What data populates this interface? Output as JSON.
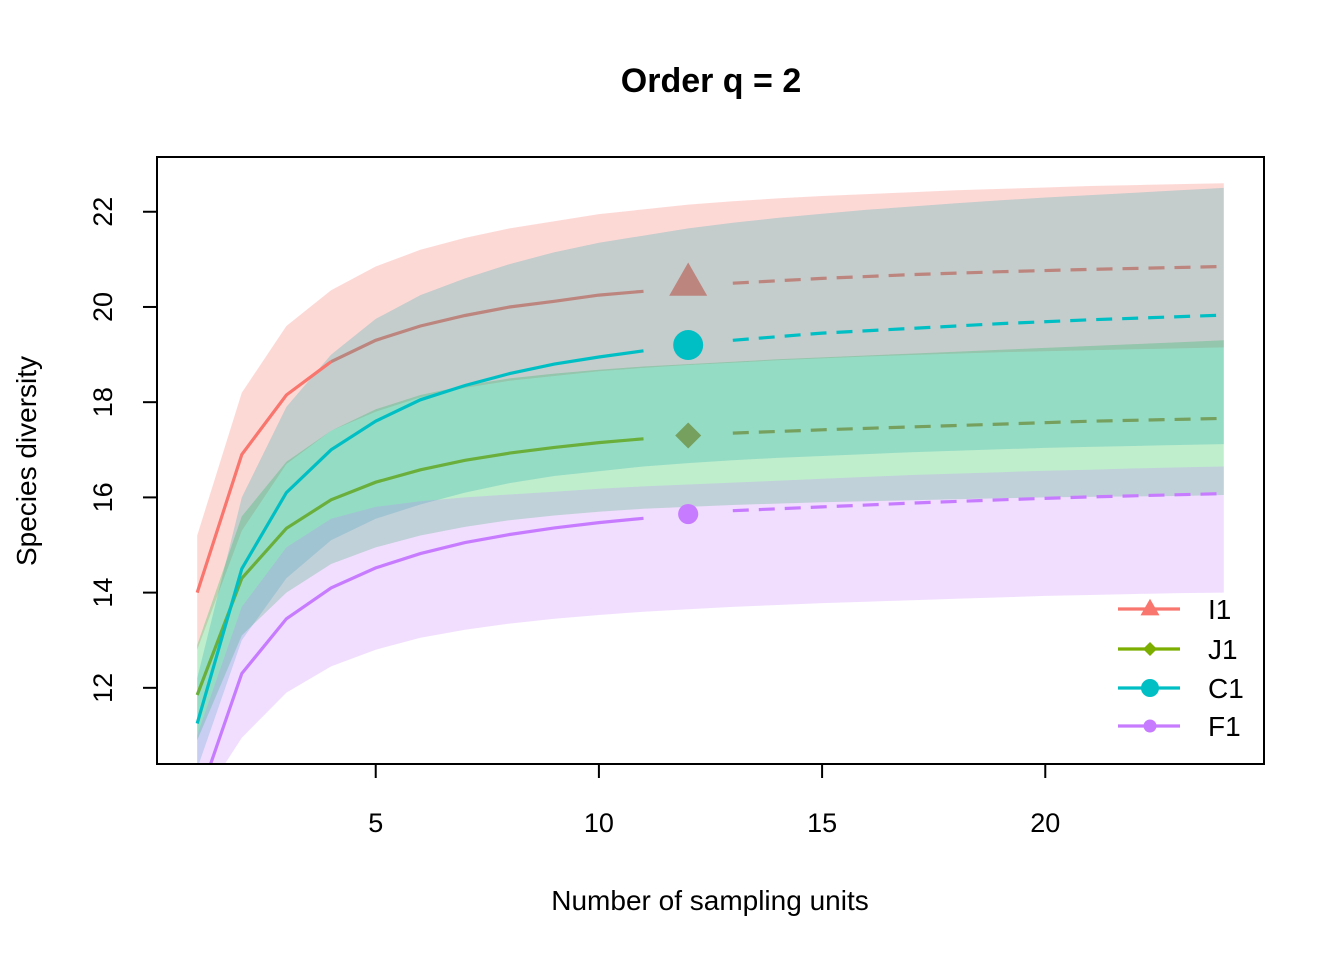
{
  "chart_data": {
    "type": "line",
    "title": "Order q = 2",
    "xlabel": "Number of sampling units",
    "ylabel": "Species diversity",
    "xlim": [
      0.1,
      24.9
    ],
    "ylim": [
      10.4,
      23.15
    ],
    "xticks": [
      5,
      10,
      15,
      20
    ],
    "yticks": [
      12,
      14,
      16,
      18,
      20,
      22
    ],
    "legend_position": "bottom-right",
    "reference_size": 12,
    "series": [
      {
        "name": "I1",
        "color": "#F8766D",
        "band_color": "rgba(248,118,109,0.28)",
        "marker": "triangle",
        "reference_value": 20.5,
        "interpolated": {
          "x": [
            1,
            2,
            3,
            4,
            5,
            6,
            7,
            8,
            9,
            10,
            11
          ],
          "y": [
            14.0,
            16.9,
            18.15,
            18.85,
            19.3,
            19.6,
            19.82,
            20.0,
            20.12,
            20.25,
            20.33
          ]
        },
        "extrapolated": {
          "x": [
            13,
            15,
            17,
            19,
            21,
            24
          ],
          "y": [
            20.5,
            20.6,
            20.68,
            20.74,
            20.79,
            20.85
          ]
        },
        "band": {
          "x": [
            1,
            2,
            3,
            4,
            5,
            6,
            7,
            8,
            9,
            10,
            11,
            12,
            13,
            14,
            15,
            16,
            17,
            18,
            19,
            20,
            21,
            22,
            23,
            24
          ],
          "lower": [
            12.8,
            15.3,
            16.7,
            17.4,
            17.8,
            18.1,
            18.3,
            18.45,
            18.55,
            18.65,
            18.72,
            18.78,
            18.83,
            18.88,
            18.92,
            18.96,
            18.99,
            19.02,
            19.05,
            19.07,
            19.09,
            19.11,
            19.13,
            19.15
          ],
          "upper": [
            15.2,
            18.2,
            19.6,
            20.35,
            20.85,
            21.2,
            21.45,
            21.65,
            21.8,
            21.95,
            22.05,
            22.15,
            22.22,
            22.28,
            22.33,
            22.37,
            22.41,
            22.45,
            22.48,
            22.51,
            22.54,
            22.56,
            22.58,
            22.6
          ]
        }
      },
      {
        "name": "J1",
        "color": "#7CAE00",
        "band_color": "rgba(0,186,56,0.25)",
        "marker": "diamond",
        "reference_value": 17.3,
        "interpolated": {
          "x": [
            1,
            2,
            3,
            4,
            5,
            6,
            7,
            8,
            9,
            10,
            11
          ],
          "y": [
            11.85,
            14.3,
            15.35,
            15.95,
            16.32,
            16.58,
            16.78,
            16.93,
            17.05,
            17.15,
            17.23
          ]
        },
        "extrapolated": {
          "x": [
            13,
            15,
            17,
            19,
            21,
            24
          ],
          "y": [
            17.35,
            17.42,
            17.48,
            17.54,
            17.6,
            17.66
          ]
        },
        "band": {
          "x": [
            1,
            2,
            3,
            4,
            5,
            6,
            7,
            8,
            9,
            10,
            11,
            12,
            13,
            14,
            15,
            16,
            17,
            18,
            19,
            20,
            21,
            22,
            23,
            24
          ],
          "lower": [
            10.9,
            13.1,
            14.0,
            14.6,
            14.95,
            15.2,
            15.38,
            15.52,
            15.62,
            15.7,
            15.76,
            15.8,
            15.84,
            15.87,
            15.9,
            15.92,
            15.94,
            15.96,
            15.98,
            16.0,
            16.01,
            16.02,
            16.03,
            16.05
          ],
          "upper": [
            12.9,
            15.6,
            16.75,
            17.4,
            17.85,
            18.15,
            18.35,
            18.5,
            18.6,
            18.68,
            18.75,
            18.8,
            18.85,
            18.9,
            18.94,
            18.98,
            19.02,
            19.06,
            19.1,
            19.14,
            19.18,
            19.22,
            19.26,
            19.3
          ]
        }
      },
      {
        "name": "C1",
        "color": "#00BFC4",
        "band_color": "rgba(0,160,170,0.22)",
        "marker": "circle",
        "reference_value": 19.2,
        "interpolated": {
          "x": [
            1,
            2,
            3,
            4,
            5,
            6,
            7,
            8,
            9,
            10,
            11
          ],
          "y": [
            11.25,
            14.5,
            16.1,
            17.0,
            17.6,
            18.05,
            18.35,
            18.6,
            18.8,
            18.95,
            19.08
          ]
        },
        "extrapolated": {
          "x": [
            13,
            15,
            17,
            19,
            21,
            24
          ],
          "y": [
            19.3,
            19.45,
            19.55,
            19.65,
            19.73,
            19.83
          ]
        },
        "band": {
          "x": [
            1,
            2,
            3,
            4,
            5,
            6,
            7,
            8,
            9,
            10,
            11,
            12,
            13,
            14,
            15,
            16,
            17,
            18,
            19,
            20,
            21,
            22,
            23,
            24
          ],
          "lower": [
            10.3,
            13.0,
            14.3,
            15.1,
            15.55,
            15.85,
            16.1,
            16.3,
            16.45,
            16.55,
            16.65,
            16.72,
            16.78,
            16.83,
            16.87,
            16.91,
            16.95,
            16.98,
            17.01,
            17.04,
            17.06,
            17.08,
            17.1,
            17.12
          ],
          "upper": [
            12.2,
            16.0,
            17.9,
            19.0,
            19.75,
            20.25,
            20.6,
            20.9,
            21.15,
            21.35,
            21.5,
            21.65,
            21.77,
            21.87,
            21.96,
            22.04,
            22.11,
            22.18,
            22.24,
            22.3,
            22.35,
            22.4,
            22.45,
            22.5
          ]
        }
      },
      {
        "name": "F1",
        "color": "#C77CFF",
        "band_color": "rgba(199,124,255,0.25)",
        "marker": "circle-small",
        "reference_value": 15.65,
        "interpolated": {
          "x": [
            1.3,
            2,
            3,
            4,
            5,
            6,
            7,
            8,
            9,
            10,
            11
          ],
          "y": [
            10.4,
            12.3,
            13.45,
            14.1,
            14.52,
            14.82,
            15.05,
            15.22,
            15.36,
            15.47,
            15.56
          ]
        },
        "extrapolated": {
          "x": [
            13,
            15,
            17,
            19,
            21,
            24
          ],
          "y": [
            15.72,
            15.8,
            15.88,
            15.95,
            16.01,
            16.08
          ]
        },
        "band": {
          "x": [
            1,
            2,
            3,
            4,
            5,
            6,
            7,
            8,
            9,
            10,
            11,
            12,
            13,
            14,
            15,
            16,
            17,
            18,
            19,
            20,
            21,
            22,
            23,
            24
          ],
          "lower": [
            9.5,
            10.95,
            11.9,
            12.45,
            12.8,
            13.05,
            13.22,
            13.35,
            13.45,
            13.53,
            13.6,
            13.65,
            13.7,
            13.74,
            13.78,
            13.81,
            13.84,
            13.87,
            13.9,
            13.93,
            13.95,
            13.97,
            13.99,
            14.0
          ],
          "upper": [
            11.0,
            13.7,
            14.95,
            15.55,
            15.8,
            15.92,
            16.0,
            16.06,
            16.12,
            16.18,
            16.23,
            16.27,
            16.31,
            16.35,
            16.39,
            16.43,
            16.47,
            16.5,
            16.53,
            16.56,
            16.58,
            16.61,
            16.63,
            16.65
          ]
        }
      }
    ]
  }
}
